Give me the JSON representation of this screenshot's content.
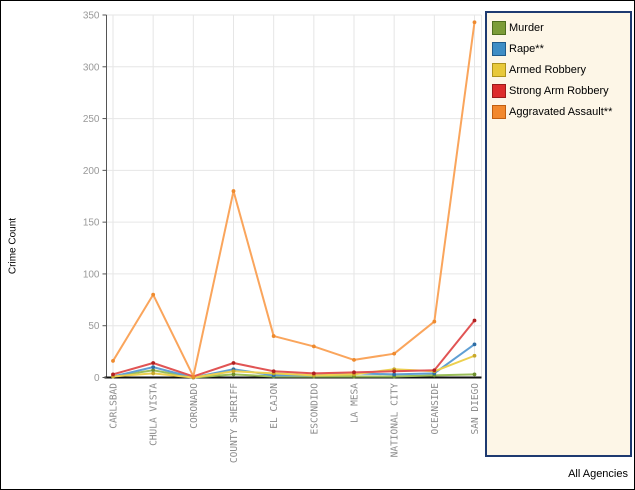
{
  "footer": {
    "label": "All Agencies"
  },
  "colors": {
    "background": "#FFFFFF",
    "frame_border": "#000000",
    "gridline": "#E6E6E6",
    "y_axis_line": "#555555",
    "x_axis_line": "#111111",
    "tick_label_color": "#999999",
    "category_label_color": "#8C8C8C",
    "legend_background": "#FDF6E7",
    "legend_border": "#1E3A70",
    "text": "#000000"
  },
  "chart_data": {
    "type": "line",
    "title": "",
    "xlabel": "",
    "ylabel": "Crime Count",
    "ylim": [
      0,
      350
    ],
    "yticks": [
      0,
      50,
      100,
      150,
      200,
      250,
      300,
      350
    ],
    "grid": true,
    "legend_position": "right",
    "categories": [
      "CARLSBAD",
      "CHULA VISTA",
      "CORONADO",
      "COUNTY SHERIFF",
      "EL CAJON",
      "ESCONDIDO",
      "LA MESA",
      "NATIONAL CITY",
      "OCEANSIDE",
      "SAN DIEGO"
    ],
    "series": [
      {
        "name": "Murder",
        "values": [
          1,
          7,
          0,
          3,
          1,
          1,
          1,
          1,
          2,
          3
        ],
        "line_color": "#9BBE59",
        "marker_color": "#6E8F2E",
        "legend_fill": "#7C9C38",
        "legend_border": "#4E6E1E"
      },
      {
        "name": "Rape**",
        "values": [
          1,
          10,
          0,
          8,
          2,
          2,
          4,
          3,
          4,
          32
        ],
        "line_color": "#5F9FD4",
        "marker_color": "#2E6DA4",
        "legend_fill": "#3E8DC5",
        "legend_border": "#1F5A8A"
      },
      {
        "name": "Armed Robbery",
        "values": [
          1,
          4,
          0,
          6,
          4,
          2,
          3,
          8,
          6,
          21
        ],
        "line_color": "#EDD04F",
        "marker_color": "#C7A72A",
        "legend_fill": "#E8C839",
        "legend_border": "#AD921C"
      },
      {
        "name": "Strong Arm Robbery",
        "values": [
          3,
          14,
          1,
          14,
          6,
          4,
          5,
          6,
          7,
          55
        ],
        "line_color": "#E15454",
        "marker_color": "#B02020",
        "legend_fill": "#DD2C2C",
        "legend_border": "#991B1B"
      },
      {
        "name": "Aggravated Assault**",
        "values": [
          16,
          80,
          1,
          180,
          40,
          30,
          17,
          23,
          54,
          343
        ],
        "line_color": "#FAA55C",
        "marker_color": "#EE8A2E",
        "legend_fill": "#F2882D",
        "legend_border": "#C05E10"
      }
    ]
  }
}
